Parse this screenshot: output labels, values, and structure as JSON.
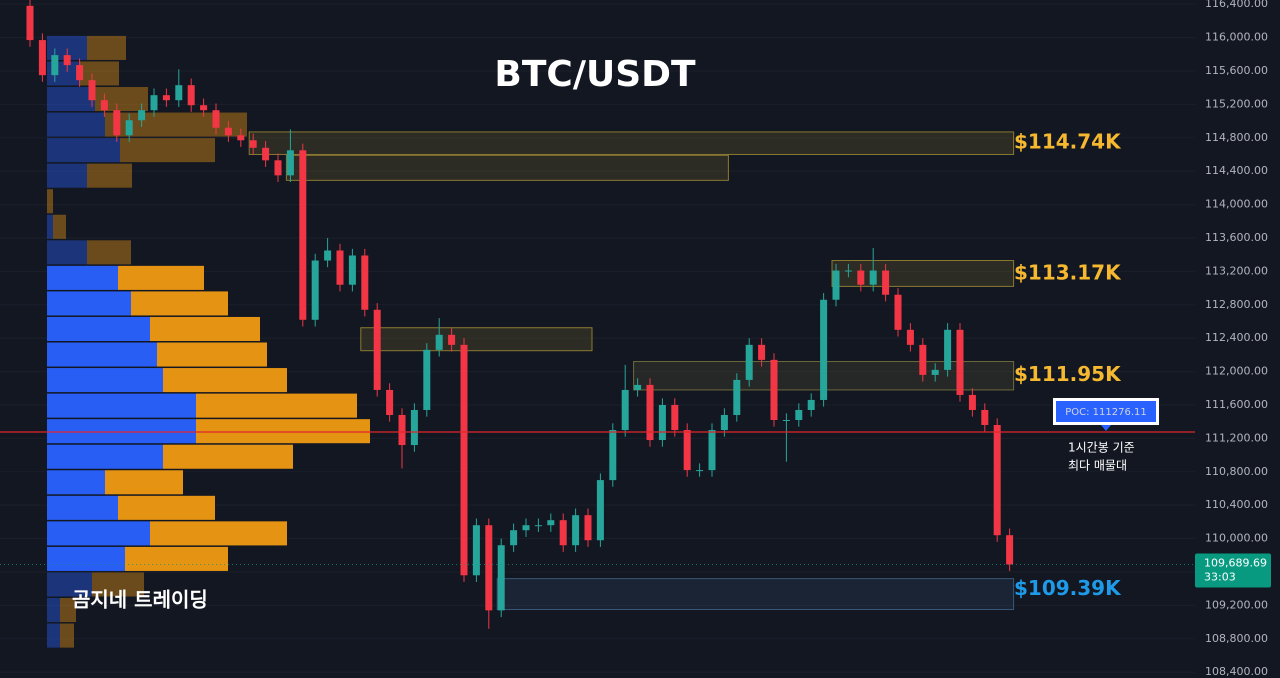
{
  "chart_data": {
    "type": "candlestick",
    "title": "BTC/USDT",
    "watermark": "곰지네 트레이딩",
    "up_color": "#26a69a",
    "down_color": "#f23645",
    "ylim": [
      108330,
      116450
    ],
    "yticks": [
      {
        "value": 116400,
        "label": "116,400.00"
      },
      {
        "value": 116000,
        "label": "116,000.00"
      },
      {
        "value": 115600,
        "label": "115,600.00"
      },
      {
        "value": 115200,
        "label": "115,200.00"
      },
      {
        "value": 114800,
        "label": "114,800.00"
      },
      {
        "value": 114400,
        "label": "114,400.00"
      },
      {
        "value": 114000,
        "label": "114,000.00"
      },
      {
        "value": 113600,
        "label": "113,600.00"
      },
      {
        "value": 113200,
        "label": "113,200.00"
      },
      {
        "value": 112800,
        "label": "112,800.00"
      },
      {
        "value": 112400,
        "label": "112,400.00"
      },
      {
        "value": 112000,
        "label": "112,000.00"
      },
      {
        "value": 111600,
        "label": "111,600.00"
      },
      {
        "value": 111200,
        "label": "111,200.00"
      },
      {
        "value": 110800,
        "label": "110,800.00"
      },
      {
        "value": 110400,
        "label": "110,400.00"
      },
      {
        "value": 110000,
        "label": "110,000.00"
      },
      {
        "value": 109600,
        "label": "109,600.00"
      },
      {
        "value": 109200,
        "label": "109,200.00"
      },
      {
        "value": 108800,
        "label": "108,800.00"
      },
      {
        "value": 108400,
        "label": "108,400.00"
      }
    ],
    "open": [
      116380,
      115970,
      115550,
      115790,
      115670,
      115490,
      115250,
      115130,
      114830,
      115010,
      115130,
      115310,
      115250,
      115430,
      115190,
      115130,
      114920,
      114830,
      114770,
      114680,
      114530,
      114350,
      114650,
      112620,
      113330,
      113450,
      113040,
      113390,
      112740,
      111780,
      111480,
      111120,
      111540,
      112260,
      112440,
      112320,
      109560,
      110160,
      109140,
      109920,
      110100,
      110160,
      110160,
      110220,
      109920,
      110280,
      109980,
      110700,
      111300,
      111780,
      111840,
      111180,
      111600,
      111300,
      110820,
      110820,
      111300,
      111480,
      111900,
      112320,
      112140,
      111420,
      111420,
      111540,
      111660,
      112860,
      113210,
      113210,
      113040,
      113210,
      112920,
      112500,
      112320,
      111960,
      112020,
      112500,
      111720,
      111540,
      111360,
      110040
    ],
    "high": [
      116460,
      116050,
      115870,
      115870,
      115750,
      115570,
      115330,
      115210,
      115090,
      115210,
      115390,
      115390,
      115620,
      115510,
      115270,
      115210,
      115000,
      114910,
      114850,
      114760,
      114610,
      114900,
      114730,
      113410,
      113600,
      113530,
      113470,
      113470,
      112820,
      111860,
      111560,
      111620,
      112340,
      112640,
      112520,
      112400,
      110240,
      110240,
      110000,
      110180,
      110240,
      110240,
      110300,
      110300,
      110360,
      110360,
      110780,
      111380,
      112080,
      111920,
      111920,
      111680,
      111680,
      111380,
      110900,
      111380,
      111560,
      111980,
      112400,
      112400,
      112220,
      111500,
      111620,
      111740,
      112940,
      113290,
      113290,
      113290,
      113480,
      113290,
      113000,
      112580,
      112400,
      112100,
      112580,
      112580,
      111800,
      111620,
      111440,
      110120
    ],
    "low": [
      115890,
      115470,
      115470,
      115590,
      115410,
      115170,
      115050,
      114750,
      114750,
      114930,
      115050,
      115170,
      115170,
      115110,
      115050,
      114840,
      114750,
      114690,
      114600,
      114450,
      114270,
      114270,
      112540,
      112540,
      113250,
      112960,
      112960,
      112660,
      111700,
      111400,
      110840,
      111040,
      111460,
      112180,
      112240,
      109480,
      109480,
      108920,
      109060,
      109840,
      110020,
      110080,
      110080,
      109840,
      109840,
      109900,
      109900,
      110620,
      111220,
      111700,
      111100,
      111100,
      111220,
      110740,
      110740,
      110740,
      111220,
      111400,
      111820,
      112060,
      111340,
      110920,
      111340,
      111460,
      111580,
      112780,
      113130,
      112960,
      112960,
      112840,
      112420,
      112240,
      111880,
      111880,
      111940,
      111640,
      111460,
      111280,
      109960,
      109610
    ],
    "close": [
      115970,
      115550,
      115790,
      115670,
      115490,
      115250,
      115130,
      114830,
      115010,
      115130,
      115310,
      115250,
      115430,
      115190,
      115130,
      114920,
      114830,
      114770,
      114680,
      114530,
      114350,
      114650,
      112620,
      113330,
      113450,
      113040,
      113390,
      112740,
      111780,
      111480,
      111120,
      111540,
      112260,
      112440,
      112320,
      109560,
      110160,
      109140,
      109920,
      110100,
      110160,
      110160,
      110220,
      109920,
      110280,
      109980,
      110700,
      111300,
      111780,
      111840,
      111180,
      111600,
      111300,
      110820,
      110820,
      111300,
      111480,
      111900,
      112320,
      112140,
      111420,
      111420,
      111540,
      111660,
      112860,
      113210,
      113210,
      113040,
      113210,
      112920,
      112500,
      112320,
      111960,
      112020,
      112500,
      111720,
      111540,
      111360,
      110040,
      109689.69
    ],
    "volume_profile": {
      "bins": [
        116020,
        115714,
        115408,
        115102,
        114796,
        114490,
        114184,
        113878,
        113572,
        113266,
        112960,
        112654,
        112348,
        112042,
        111736,
        111430,
        111124,
        110818,
        110512,
        110206,
        109900,
        109594,
        109288,
        108982,
        108676
      ],
      "buy": [
        40,
        33,
        48,
        58,
        73,
        40,
        0,
        6,
        40,
        71,
        84,
        103,
        110,
        116,
        149,
        149,
        116,
        58,
        71,
        103,
        78,
        45,
        13,
        13
      ],
      "sell": [
        39,
        39,
        53,
        142,
        95,
        45,
        6,
        13,
        44,
        86,
        97,
        110,
        110,
        124,
        161,
        174,
        130,
        78,
        97,
        137,
        103,
        52,
        16,
        14
      ],
      "buy_color": "#2962ff",
      "sell_color": "#f09a12",
      "value_area": [
        109600,
        113270
      ]
    },
    "zones": [
      {
        "low": 114600,
        "high": 114870,
        "start": 18,
        "end": 79,
        "color": "#8a7a30",
        "level": {
          "value": 114740,
          "label": "$114.74K"
        },
        "label_color": "#f5b82e"
      },
      {
        "low": 114290,
        "high": 114590,
        "start": 21,
        "end": 56,
        "color": "#8a7a30"
      },
      {
        "low": 113020,
        "high": 113330,
        "start": 65,
        "end": 79,
        "color": "#8a7a30",
        "level": {
          "value": 113170,
          "label": "$113.17K"
        },
        "label_color": "#f5b82e"
      },
      {
        "low": 111780,
        "high": 112120,
        "start": 49,
        "end": 79,
        "color": "#6e6a3a",
        "level": {
          "value": 111950,
          "label": "$111.95K"
        },
        "label_color": "#f5b82e"
      },
      {
        "low": 112250,
        "high": 112525,
        "start": 27,
        "end": 45,
        "color": "#8a7a30"
      },
      {
        "low": 109150,
        "high": 109520,
        "start": 38,
        "end": 79,
        "color": "#3a5878",
        "level": {
          "value": 109390,
          "label": "$109.39K"
        },
        "label_color": "#1e9be8"
      }
    ],
    "poc": {
      "value": 111276.11,
      "label": "POC: 111276.11",
      "color": "#e0262b",
      "note": [
        "1시간봉 기준",
        "최다 매물대"
      ]
    },
    "price_tag": {
      "label": "109,689.69",
      "countdown": "33:03",
      "color": "#089981"
    }
  }
}
